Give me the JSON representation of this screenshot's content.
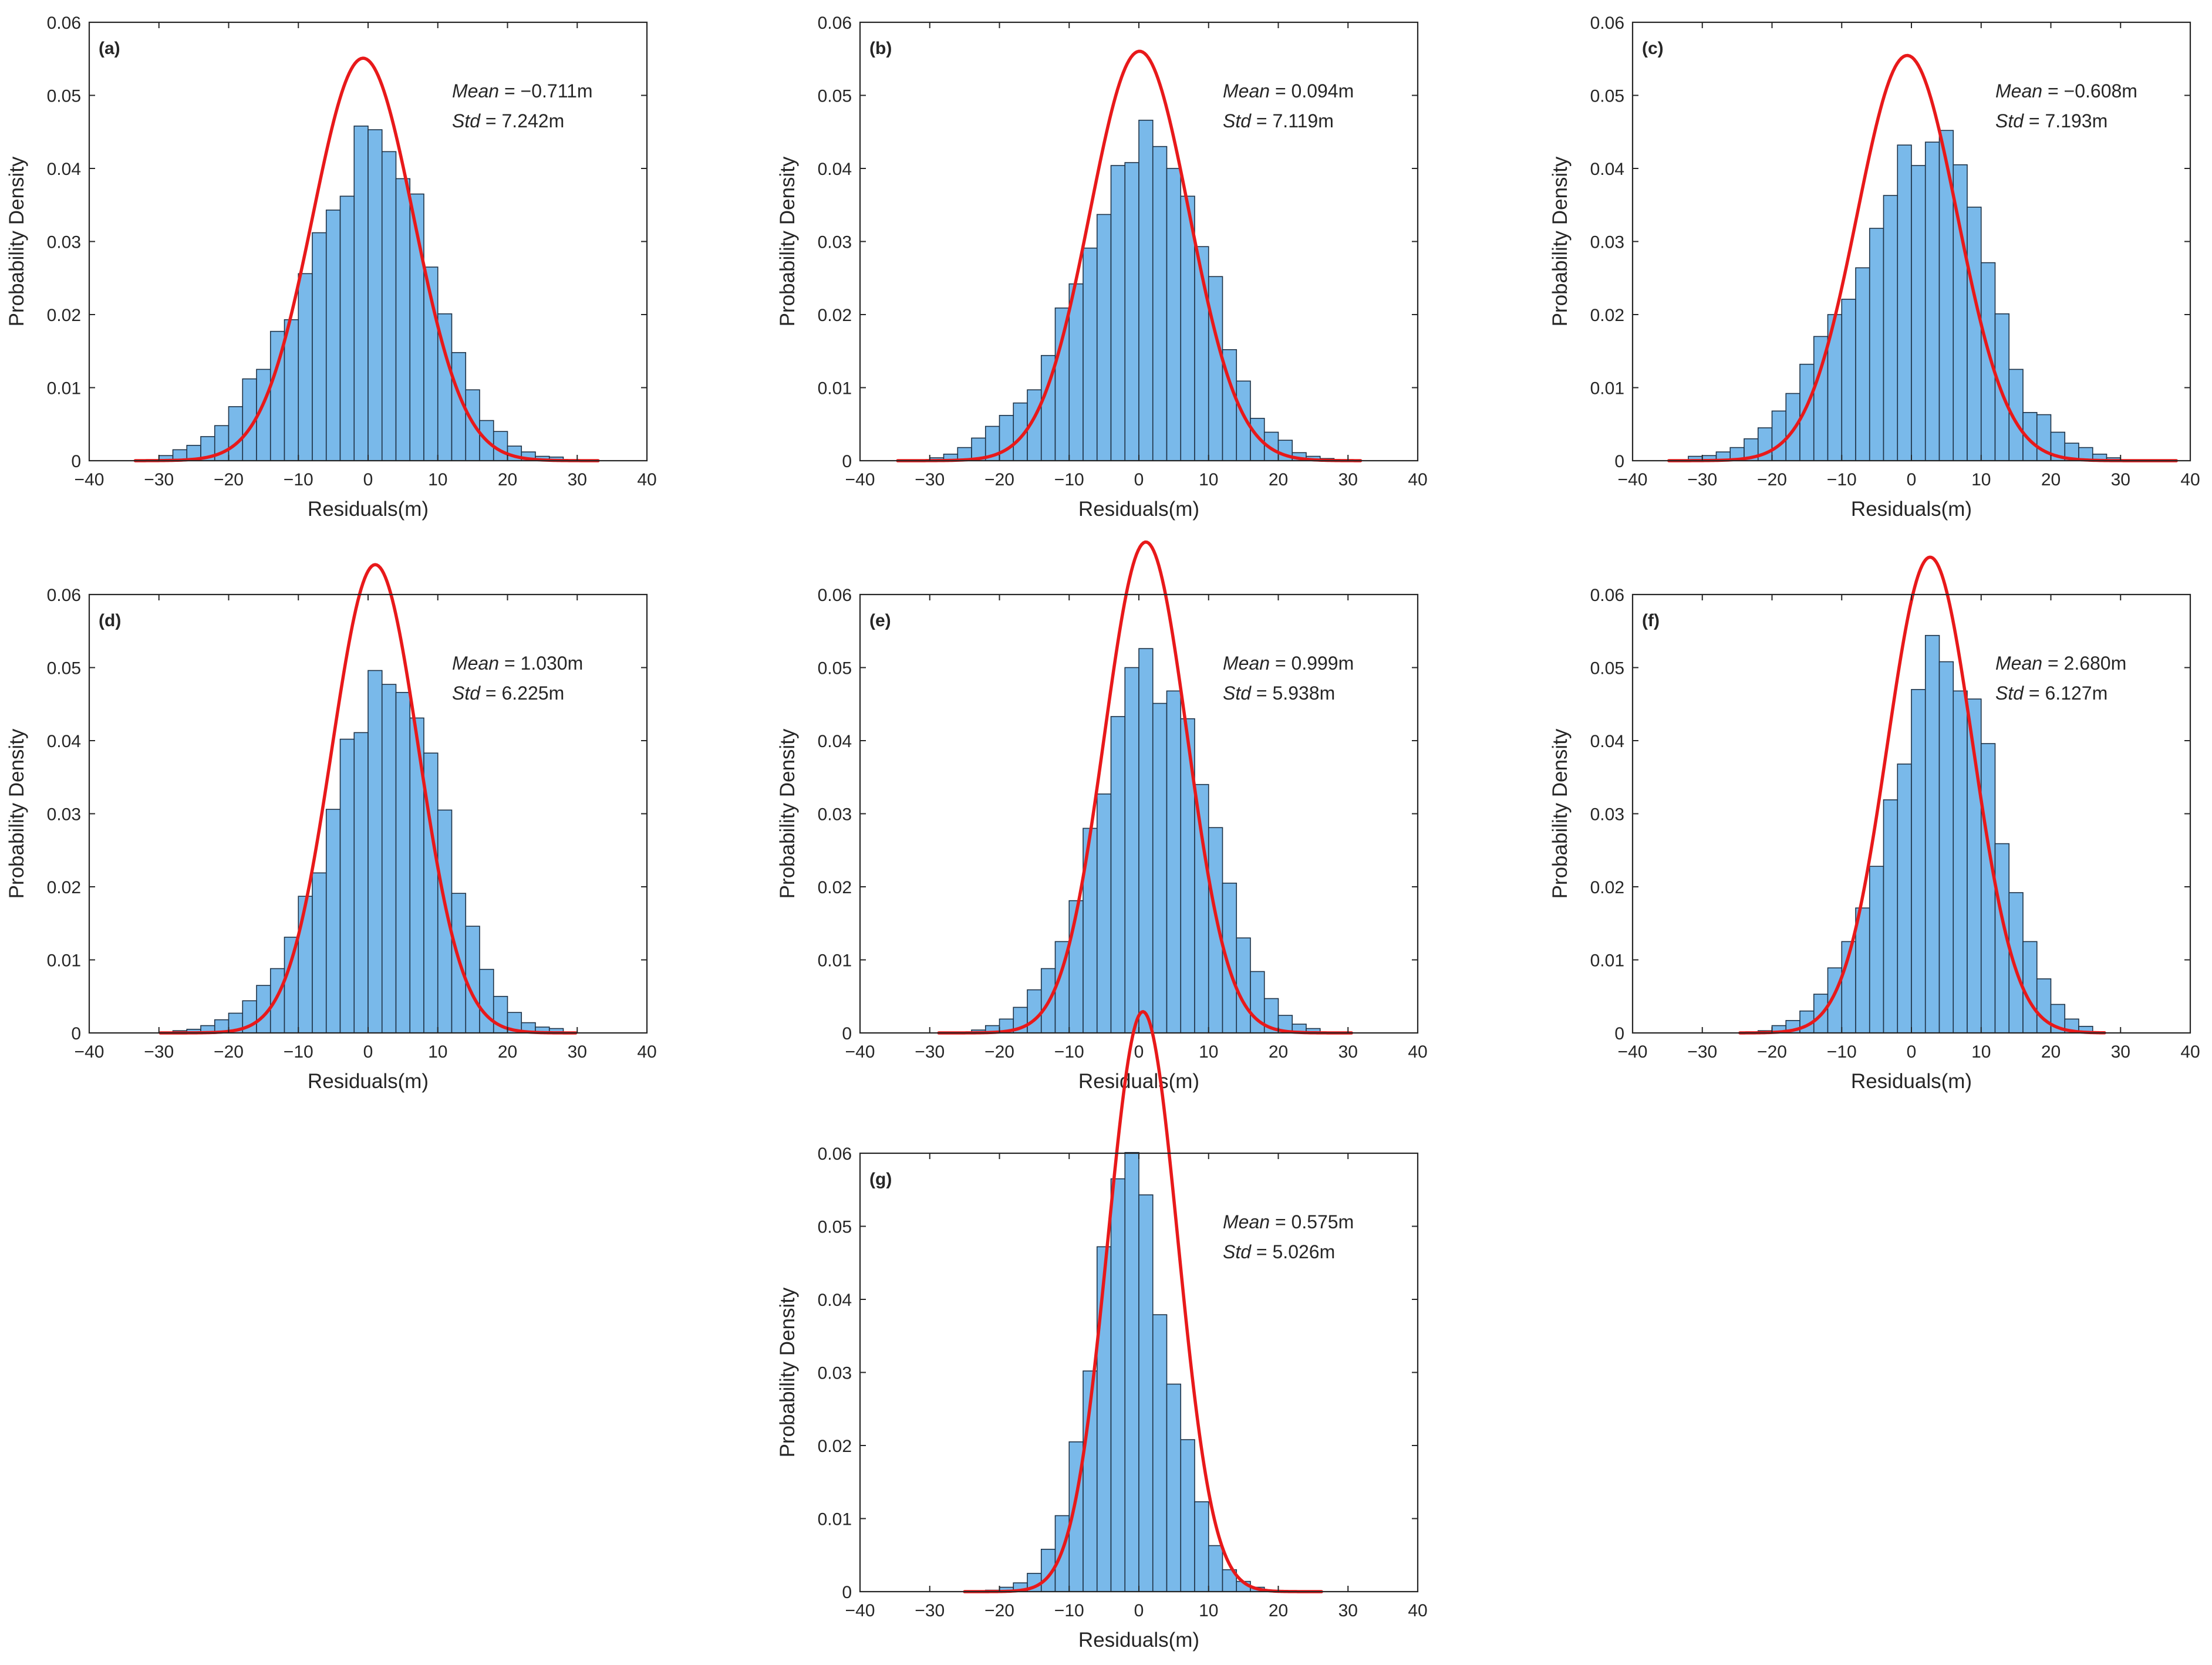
{
  "figure": {
    "xlabel": "Residuals(m)",
    "ylabel": "Probability Density",
    "xlim": [
      -40,
      40
    ],
    "ylim": [
      0,
      0.06
    ],
    "xticks": [
      "−40",
      "−30",
      "−20",
      "−10",
      "0",
      "10",
      "20",
      "30",
      "40"
    ],
    "yticks": [
      "0",
      "0.01",
      "0.02",
      "0.03",
      "0.04",
      "0.05",
      "0.06"
    ],
    "colors": {
      "bar_fill": "#79b9ea",
      "bar_edge": "#1f3347",
      "curve": "#e8191a",
      "axis": "#262626"
    }
  },
  "chart_data": [
    {
      "type": "bar",
      "panel": "(a)",
      "mean_label": "Mean",
      "mean_value": " = −0.711m",
      "std_label": "Std",
      "std_value": " = 7.242m",
      "mean": -0.711,
      "std": 7.242,
      "bin_start": -30,
      "bin_width": 2,
      "values": [
        0.0007,
        0.0015,
        0.0021,
        0.0033,
        0.0048,
        0.0074,
        0.0112,
        0.0125,
        0.0177,
        0.0193,
        0.0256,
        0.0312,
        0.0343,
        0.0362,
        0.0458,
        0.0453,
        0.0423,
        0.0386,
        0.0365,
        0.0265,
        0.0201,
        0.0148,
        0.0097,
        0.0055,
        0.004,
        0.002,
        0.0012,
        0.0006,
        0.0005
      ],
      "curve_x_range": [
        -33.4,
        33.0
      ],
      "xlim": [
        -40,
        40
      ],
      "ylim": [
        0,
        0.06
      ]
    },
    {
      "type": "bar",
      "panel": "(b)",
      "mean_label": "Mean",
      "mean_value": " = 0.094m",
      "std_label": "Std",
      "std_value": " = 7.119m",
      "mean": 0.094,
      "std": 7.119,
      "bin_start": -30,
      "bin_width": 2,
      "values": [
        0.0004,
        0.0009,
        0.0018,
        0.0031,
        0.0047,
        0.0062,
        0.0079,
        0.0097,
        0.0144,
        0.0209,
        0.0242,
        0.0291,
        0.0337,
        0.0404,
        0.0408,
        0.0466,
        0.043,
        0.04,
        0.0362,
        0.0293,
        0.0252,
        0.0152,
        0.0109,
        0.0058,
        0.0039,
        0.0028,
        0.0011,
        0.0006,
        0.0003
      ],
      "curve_x_range": [
        -34.6,
        31.8
      ],
      "xlim": [
        -40,
        40
      ],
      "ylim": [
        0,
        0.06
      ]
    },
    {
      "type": "bar",
      "panel": "(c)",
      "mean_label": "Mean",
      "mean_value": " = −0.608m",
      "std_label": "Std",
      "std_value": " = 7.193m",
      "mean": -0.608,
      "std": 7.193,
      "bin_start": -32,
      "bin_width": 2,
      "values": [
        0.0006,
        0.0007,
        0.0012,
        0.0018,
        0.003,
        0.0045,
        0.0068,
        0.0092,
        0.0132,
        0.017,
        0.02,
        0.0221,
        0.0264,
        0.0318,
        0.0363,
        0.0432,
        0.0404,
        0.0436,
        0.0452,
        0.0405,
        0.0347,
        0.0271,
        0.0201,
        0.0125,
        0.0066,
        0.0063,
        0.0039,
        0.0024,
        0.0018,
        0.0009,
        0.0004
      ],
      "curve_x_range": [
        -34.8,
        38.0
      ],
      "xlim": [
        -40,
        40
      ],
      "ylim": [
        0,
        0.06
      ]
    },
    {
      "type": "bar",
      "panel": "(d)",
      "mean_label": "Mean",
      "mean_value": " = 1.030m",
      "std_label": "Std",
      "std_value": " = 6.225m",
      "mean": 1.03,
      "std": 6.225,
      "bin_start": -28,
      "bin_width": 2,
      "values": [
        0.0003,
        0.0005,
        0.001,
        0.0018,
        0.0027,
        0.0044,
        0.0065,
        0.0088,
        0.0131,
        0.0187,
        0.0219,
        0.0306,
        0.0402,
        0.0411,
        0.0496,
        0.0477,
        0.0466,
        0.0431,
        0.0383,
        0.0305,
        0.0191,
        0.0146,
        0.0087,
        0.005,
        0.0028,
        0.0014,
        0.0008,
        0.0006
      ],
      "curve_x_range": [
        -29.8,
        29.8
      ],
      "xlim": [
        -40,
        40
      ],
      "ylim": [
        0,
        0.06
      ]
    },
    {
      "type": "bar",
      "panel": "(e)",
      "mean_label": "Mean",
      "mean_value": " = 0.999m",
      "std_label": "Std",
      "std_value": " = 5.938m",
      "mean": 0.999,
      "std": 5.938,
      "bin_start": -24,
      "bin_width": 2,
      "values": [
        0.0004,
        0.001,
        0.0019,
        0.0035,
        0.0059,
        0.0088,
        0.0125,
        0.0181,
        0.028,
        0.0327,
        0.0433,
        0.05,
        0.0526,
        0.0451,
        0.0468,
        0.043,
        0.034,
        0.0281,
        0.0205,
        0.013,
        0.0084,
        0.0047,
        0.0024,
        0.0012,
        0.0006
      ],
      "curve_x_range": [
        -28.7,
        30.5
      ],
      "xlim": [
        -40,
        40
      ],
      "ylim": [
        0,
        0.06
      ]
    },
    {
      "type": "bar",
      "panel": "(f)",
      "mean_label": "Mean",
      "mean_value": " = 2.680m",
      "std_label": "Std",
      "std_value": " = 6.127m",
      "mean": 2.68,
      "std": 6.127,
      "bin_start": -22,
      "bin_width": 2,
      "values": [
        0.0003,
        0.001,
        0.0017,
        0.003,
        0.0053,
        0.0089,
        0.0125,
        0.0171,
        0.0228,
        0.0319,
        0.0368,
        0.047,
        0.0544,
        0.0508,
        0.0468,
        0.0457,
        0.0396,
        0.0259,
        0.0192,
        0.0125,
        0.0074,
        0.0039,
        0.0019,
        0.0009
      ],
      "curve_x_range": [
        -24.6,
        27.7
      ],
      "xlim": [
        -40,
        40
      ],
      "ylim": [
        0,
        0.06
      ]
    },
    {
      "type": "bar",
      "panel": "(g)",
      "mean_label": "Mean",
      "mean_value": " = 0.575m",
      "std_label": "Std",
      "std_value": " = 5.026m",
      "mean": 0.575,
      "std": 5.026,
      "bin_start": -22,
      "bin_width": 2,
      "values": [
        0.0002,
        0.0006,
        0.0012,
        0.0025,
        0.0058,
        0.0104,
        0.0205,
        0.0302,
        0.0472,
        0.0565,
        0.0601,
        0.0543,
        0.0379,
        0.0284,
        0.0208,
        0.0123,
        0.0063,
        0.003,
        0.0014,
        0.0006
      ],
      "curve_x_range": [
        -25.0,
        26.2
      ],
      "xlim": [
        -40,
        40
      ],
      "ylim": [
        0,
        0.06
      ]
    }
  ]
}
